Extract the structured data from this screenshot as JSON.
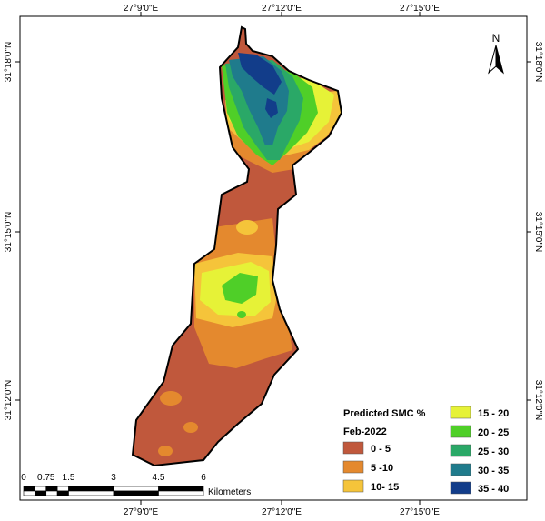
{
  "map": {
    "frame_color": "#000000",
    "coordinates": {
      "top": [
        "27°9'0\"E",
        "27°12'0\"E",
        "27°15'0\"E"
      ],
      "bottom": [
        "27°9'0\"E",
        "27°12'0\"E",
        "27°15'0\"E"
      ],
      "left": [
        "31°18'0\"N",
        "31°15'0\"N",
        "31°12'0\"N"
      ],
      "right": [
        "31°18'0\"N",
        "31°15'0\"N",
        "31°12'0\"N"
      ]
    },
    "north_arrow": {
      "label": "N",
      "icon": "north-arrow-icon"
    },
    "legend": {
      "title": "Predicted SMC %",
      "subtitle": "Feb-2022",
      "classes": [
        {
          "label": "0 - 5",
          "color": "#c0583c"
        },
        {
          "label": "5 -10",
          "color": "#e4892e"
        },
        {
          "label": "10- 15",
          "color": "#f5c43a"
        },
        {
          "label": "15 - 20",
          "color": "#e6f237"
        },
        {
          "label": "20 - 25",
          "color": "#4fcf28"
        },
        {
          "label": "25 - 30",
          "color": "#2aa867"
        },
        {
          "label": "30 - 35",
          "color": "#1f7b8c"
        },
        {
          "label": "35 - 40",
          "color": "#123d8a"
        }
      ]
    },
    "scale_bar": {
      "ticks": [
        "0",
        "0.75",
        "1.5",
        "3",
        "4.5",
        "6"
      ],
      "unit": "Kilometers"
    }
  }
}
